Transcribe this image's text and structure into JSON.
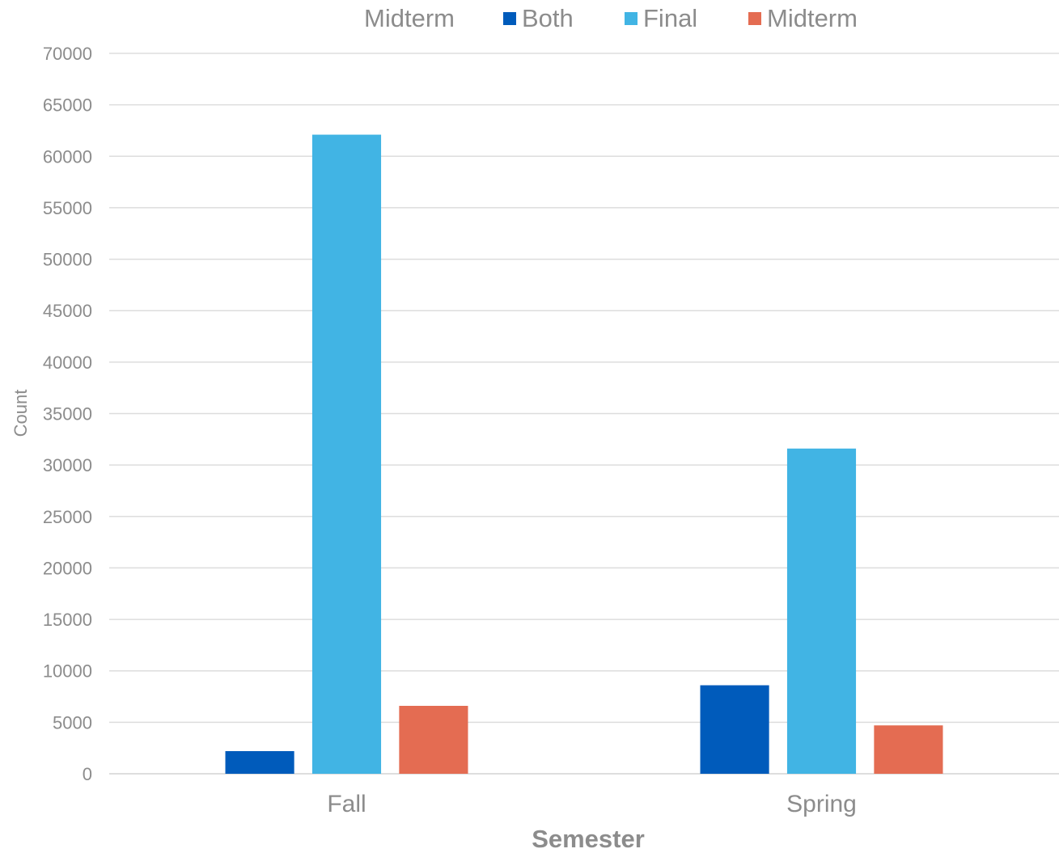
{
  "chart_data": {
    "type": "bar",
    "legend_title": "Midterm",
    "categories": [
      "Fall",
      "Spring"
    ],
    "series": [
      {
        "name": "Both",
        "color": "#005BBB",
        "values": [
          2200,
          8600
        ]
      },
      {
        "name": "Final",
        "color": "#41B4E4",
        "values": [
          62100,
          31600
        ]
      },
      {
        "name": "Midterm",
        "color": "#E46C52",
        "values": [
          6600,
          4700
        ]
      }
    ],
    "xlabel": "Semester",
    "ylabel": "Count",
    "ylim": [
      0,
      70000
    ],
    "yticks": [
      0,
      5000,
      10000,
      15000,
      20000,
      25000,
      30000,
      35000,
      40000,
      45000,
      50000,
      55000,
      60000,
      65000,
      70000
    ],
    "grid": true,
    "legend_position": "top"
  }
}
